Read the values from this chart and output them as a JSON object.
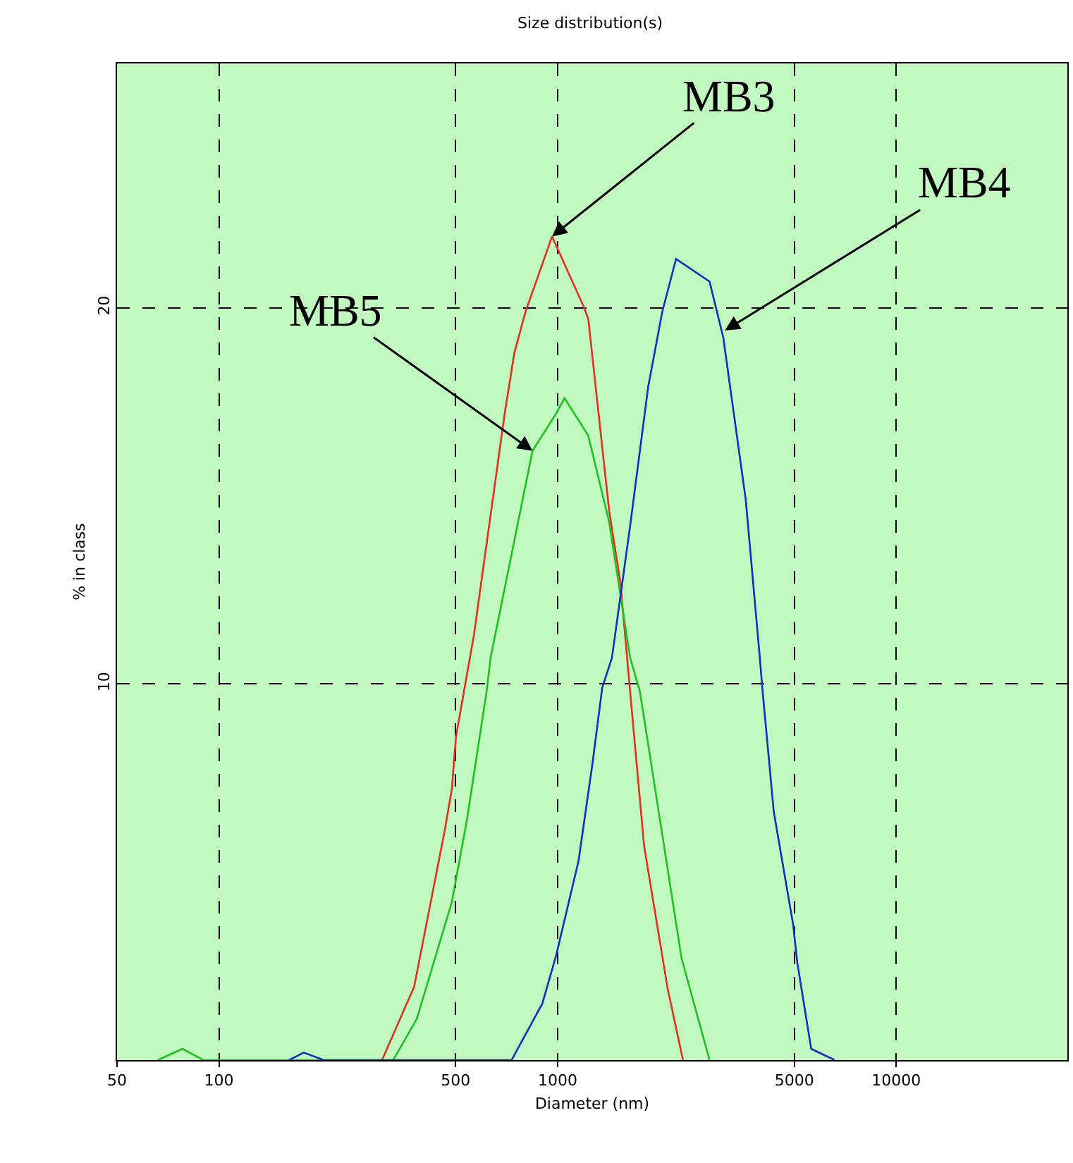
{
  "chart_data": {
    "type": "line",
    "title": "Size distribution(s)",
    "xlabel": "Diameter (nm)",
    "ylabel": "% in class",
    "log": "x",
    "grid": true,
    "marker": "none",
    "line_style": "solid",
    "xlim": [
      50,
      32000
    ],
    "xticks": [
      50,
      100,
      500,
      1000,
      5000,
      10000
    ],
    "ylim": [
      0,
      26.5
    ],
    "yticks": [
      10,
      20
    ],
    "series": [
      {
        "color": "#e03020",
        "x": [
          303,
          377,
          464,
          487,
          501,
          566,
          698,
          745,
          804,
          963,
          1198,
          1232,
          1420,
          1532,
          1637,
          1800,
          2113,
          2345
        ],
        "values": [
          0,
          1.95,
          6.1,
          7.2,
          8.6,
          11.3,
          17.2,
          18.8,
          19.9,
          21.9,
          20.0,
          19.7,
          14.6,
          12.7,
          9.8,
          5.7,
          1.9,
          0
        ]
      },
      {
        "color": "#20c020",
        "x": [
          66,
          78,
          90,
          327,
          384,
          487,
          540,
          617,
          634,
          843,
          991,
          1048,
          1232,
          1420,
          1637,
          1750,
          2323,
          2810
        ],
        "values": [
          0,
          0.3,
          0,
          0,
          1.1,
          4.2,
          6.4,
          9.8,
          10.7,
          16.2,
          17.2,
          17.6,
          16.6,
          14.3,
          10.7,
          9.8,
          2.7,
          0
        ]
      },
      {
        "color": "#1030c0",
        "x": [
          161,
          178,
          204,
          731,
          901,
          991,
          1153,
          1268,
          1354,
          1447,
          1637,
          1851,
          2037,
          2237,
          2810,
          3086,
          3593,
          3954,
          4030,
          4348,
          4960,
          5100,
          5607,
          6580
        ],
        "values": [
          0,
          0.2,
          0,
          0,
          1.5,
          2.8,
          5.3,
          7.9,
          9.9,
          10.7,
          14.2,
          17.9,
          19.9,
          21.3,
          20.7,
          19.2,
          14.9,
          10.7,
          9.8,
          6.6,
          3.6,
          2.6,
          0.3,
          0
        ]
      }
    ],
    "annotations": [
      {
        "text": "MB3",
        "x": 963,
        "y": 21.9
      },
      {
        "text": "MB4",
        "x": 3120,
        "y": 19.4
      },
      {
        "text": "MB5",
        "x": 843,
        "y": 16.2
      }
    ]
  }
}
